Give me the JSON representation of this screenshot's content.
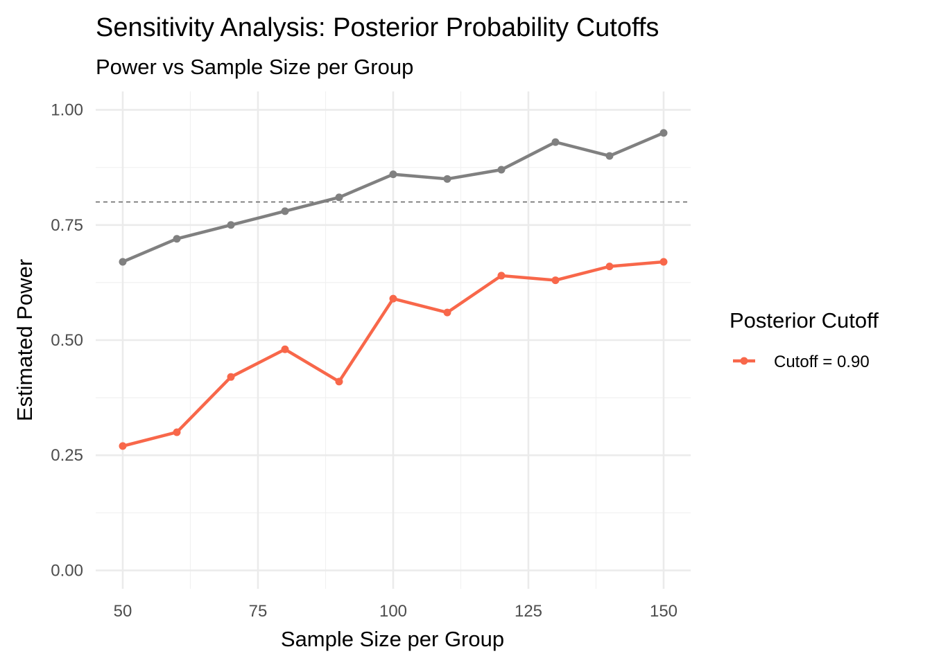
{
  "chart_data": {
    "type": "line",
    "title": "Sensitivity Analysis: Posterior Probability Cutoffs",
    "subtitle": "Power vs Sample Size per Group",
    "xlabel": "Sample Size per Group",
    "ylabel": "Estimated Power",
    "xlim": [
      45,
      155
    ],
    "ylim": [
      -0.04,
      1.04
    ],
    "x_ticks": [
      50,
      75,
      100,
      125,
      150
    ],
    "x_tick_labels": [
      "50",
      "75",
      "100",
      "125",
      "150"
    ],
    "y_ticks": [
      0,
      0.25,
      0.5,
      0.75,
      1.0
    ],
    "y_tick_labels": [
      "0.00",
      "0.25",
      "0.50",
      "0.75",
      "1.00"
    ],
    "grid": true,
    "reference_line": {
      "y": 0.8,
      "style": "dashed",
      "color": "#6b6b6b"
    },
    "legend": {
      "title": "Posterior Cutoff",
      "position": "right"
    },
    "x": [
      50,
      60,
      70,
      80,
      90,
      100,
      110,
      120,
      130,
      140,
      150
    ],
    "series": [
      {
        "name": "",
        "color": "#808080",
        "in_legend": false,
        "values": [
          0.67,
          0.72,
          0.75,
          0.78,
          0.81,
          0.86,
          0.85,
          0.87,
          0.93,
          0.9,
          0.95
        ]
      },
      {
        "name": "Cutoff = 0.90",
        "color": "#f8674a",
        "in_legend": true,
        "values": [
          0.27,
          0.3,
          0.42,
          0.48,
          0.41,
          0.59,
          0.56,
          0.64,
          0.63,
          0.66,
          0.67
        ]
      }
    ]
  }
}
